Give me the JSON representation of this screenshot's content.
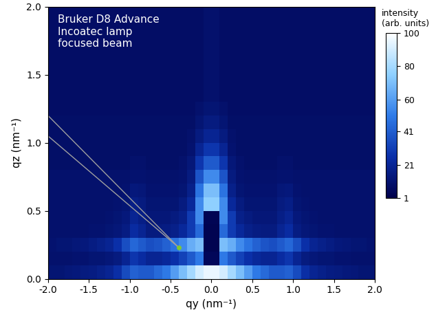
{
  "chart_data": {
    "type": "heatmap",
    "annotation": "Bruker D8 Advance\nIncoatec lamp\nfocused beam",
    "x_label": "qy (nm⁻¹)",
    "y_label": "qz (nm⁻¹)",
    "xlim": [
      -2.0,
      2.0
    ],
    "ylim": [
      0.0,
      2.0
    ],
    "xticks": [
      -2.0,
      -1.5,
      -1.0,
      -0.5,
      0.0,
      0.5,
      1.0,
      1.5,
      2.0
    ],
    "yticks": [
      0.0,
      0.5,
      1.0,
      1.5,
      2.0
    ],
    "colorbar_label": "intensity\n(arb. units)",
    "colorbar_range": [
      1,
      100
    ],
    "colorbar_ticks": [
      1,
      21,
      41,
      60,
      80,
      100
    ],
    "beam_point": [
      -0.4,
      0.23
    ],
    "beam_lines": [
      [
        [
          -2.0,
          1.2
        ],
        [
          -0.4,
          0.23
        ]
      ],
      [
        [
          -2.0,
          1.05
        ],
        [
          -0.4,
          0.23
        ]
      ]
    ],
    "cells": [
      [
        12,
        12,
        13,
        14,
        15,
        16,
        18,
        20,
        25,
        35,
        42,
        40,
        40,
        45,
        50,
        60,
        70,
        80,
        90,
        95,
        95,
        90,
        80,
        70,
        60,
        50,
        45,
        40,
        40,
        42,
        35,
        25,
        20,
        18,
        16,
        15,
        14,
        13,
        12,
        12
      ],
      [
        10,
        10,
        10,
        11,
        11,
        12,
        12,
        13,
        15,
        20,
        28,
        24,
        20,
        20,
        22,
        26,
        32,
        40,
        50,
        5,
        5,
        50,
        40,
        32,
        26,
        22,
        20,
        20,
        24,
        28,
        20,
        15,
        13,
        12,
        12,
        11,
        11,
        10,
        10,
        10
      ],
      [
        11,
        12,
        12,
        13,
        14,
        16,
        18,
        20,
        26,
        36,
        44,
        40,
        36,
        38,
        42,
        48,
        55,
        65,
        70,
        3,
        3,
        70,
        65,
        55,
        48,
        42,
        38,
        36,
        40,
        44,
        36,
        26,
        20,
        18,
        16,
        14,
        13,
        12,
        12,
        11
      ],
      [
        10,
        10,
        10,
        10,
        10,
        11,
        11,
        12,
        13,
        16,
        24,
        20,
        15,
        15,
        16,
        18,
        22,
        30,
        45,
        3,
        3,
        45,
        30,
        22,
        18,
        16,
        15,
        15,
        20,
        24,
        16,
        13,
        12,
        11,
        11,
        10,
        10,
        10,
        10,
        10
      ],
      [
        10,
        10,
        10,
        10,
        10,
        10,
        10,
        11,
        12,
        14,
        20,
        17,
        13,
        13,
        13,
        15,
        18,
        30,
        55,
        4,
        4,
        55,
        30,
        18,
        15,
        13,
        13,
        13,
        17,
        20,
        14,
        12,
        11,
        10,
        10,
        10,
        10,
        10,
        10,
        10
      ],
      [
        10,
        10,
        10,
        10,
        10,
        10,
        10,
        10,
        11,
        12,
        17,
        15,
        12,
        12,
        12,
        12,
        15,
        22,
        55,
        75,
        75,
        55,
        22,
        15,
        12,
        12,
        12,
        12,
        15,
        17,
        12,
        11,
        10,
        10,
        10,
        10,
        10,
        10,
        10,
        10
      ],
      [
        10,
        10,
        10,
        10,
        10,
        10,
        10,
        10,
        10,
        11,
        14,
        13,
        11,
        11,
        11,
        11,
        12,
        18,
        48,
        70,
        70,
        48,
        18,
        12,
        11,
        11,
        11,
        11,
        13,
        14,
        11,
        10,
        10,
        10,
        10,
        10,
        10,
        10,
        10,
        10
      ],
      [
        10,
        10,
        10,
        10,
        10,
        10,
        10,
        10,
        10,
        10,
        11,
        11,
        10,
        10,
        10,
        10,
        11,
        15,
        38,
        55,
        55,
        38,
        15,
        11,
        10,
        10,
        10,
        10,
        11,
        11,
        10,
        10,
        10,
        10,
        10,
        10,
        10,
        10,
        10,
        10
      ],
      [
        9,
        9,
        9,
        9,
        9,
        9,
        9,
        9,
        9,
        9,
        10,
        10,
        9,
        9,
        9,
        9,
        10,
        13,
        28,
        40,
        40,
        28,
        13,
        10,
        9,
        9,
        9,
        9,
        10,
        10,
        9,
        9,
        9,
        9,
        9,
        9,
        9,
        9,
        9,
        9
      ],
      [
        9,
        9,
        9,
        9,
        9,
        9,
        9,
        9,
        9,
        9,
        9,
        9,
        9,
        9,
        9,
        9,
        9,
        11,
        20,
        28,
        28,
        20,
        11,
        9,
        9,
        9,
        9,
        9,
        9,
        9,
        9,
        9,
        9,
        9,
        9,
        9,
        9,
        9,
        9,
        9
      ],
      [
        9,
        9,
        9,
        9,
        9,
        9,
        9,
        9,
        9,
        9,
        9,
        9,
        9,
        9,
        9,
        9,
        9,
        10,
        15,
        20,
        20,
        15,
        10,
        9,
        9,
        9,
        9,
        9,
        9,
        9,
        9,
        9,
        9,
        9,
        9,
        9,
        9,
        9,
        9,
        9
      ],
      [
        9,
        9,
        9,
        9,
        9,
        9,
        9,
        9,
        9,
        9,
        9,
        9,
        9,
        9,
        9,
        9,
        9,
        9,
        12,
        15,
        15,
        12,
        9,
        9,
        9,
        9,
        9,
        9,
        9,
        9,
        9,
        9,
        9,
        9,
        9,
        9,
        9,
        9,
        9,
        9
      ],
      [
        8,
        8,
        8,
        8,
        8,
        8,
        8,
        8,
        8,
        8,
        8,
        8,
        8,
        8,
        8,
        8,
        8,
        8,
        10,
        12,
        12,
        10,
        8,
        8,
        8,
        8,
        8,
        8,
        8,
        8,
        8,
        8,
        8,
        8,
        8,
        8,
        8,
        8,
        8,
        8
      ],
      [
        8,
        8,
        8,
        8,
        8,
        8,
        8,
        8,
        8,
        8,
        8,
        8,
        8,
        8,
        8,
        8,
        8,
        8,
        8,
        10,
        10,
        8,
        8,
        8,
        8,
        8,
        8,
        8,
        8,
        8,
        8,
        8,
        8,
        8,
        8,
        8,
        8,
        8,
        8,
        8
      ],
      [
        8,
        8,
        8,
        8,
        8,
        8,
        8,
        8,
        8,
        8,
        8,
        8,
        8,
        8,
        8,
        8,
        8,
        8,
        8,
        10,
        10,
        8,
        8,
        8,
        8,
        8,
        8,
        8,
        8,
        8,
        8,
        8,
        8,
        8,
        8,
        8,
        8,
        8,
        8,
        8
      ],
      [
        8,
        8,
        8,
        8,
        8,
        8,
        8,
        8,
        8,
        8,
        8,
        8,
        8,
        8,
        8,
        8,
        8,
        8,
        8,
        10,
        10,
        8,
        8,
        8,
        8,
        8,
        8,
        8,
        8,
        8,
        8,
        8,
        8,
        8,
        8,
        8,
        8,
        8,
        8,
        8
      ],
      [
        8,
        8,
        8,
        8,
        8,
        8,
        8,
        8,
        8,
        8,
        8,
        8,
        8,
        8,
        8,
        8,
        8,
        8,
        8,
        10,
        10,
        8,
        8,
        8,
        8,
        8,
        8,
        8,
        8,
        8,
        8,
        8,
        8,
        8,
        8,
        8,
        8,
        8,
        8,
        8
      ],
      [
        8,
        8,
        8,
        8,
        8,
        8,
        8,
        8,
        8,
        8,
        8,
        8,
        8,
        8,
        8,
        8,
        8,
        8,
        8,
        10,
        10,
        8,
        8,
        8,
        8,
        8,
        8,
        8,
        8,
        8,
        8,
        8,
        8,
        8,
        8,
        8,
        8,
        8,
        8,
        8
      ],
      [
        8,
        8,
        8,
        8,
        8,
        8,
        8,
        8,
        8,
        8,
        8,
        8,
        8,
        8,
        8,
        8,
        8,
        8,
        8,
        10,
        10,
        8,
        8,
        8,
        8,
        8,
        8,
        8,
        8,
        8,
        8,
        8,
        8,
        8,
        8,
        8,
        8,
        8,
        8,
        8
      ],
      [
        8,
        8,
        8,
        8,
        8,
        8,
        8,
        8,
        8,
        8,
        8,
        8,
        8,
        8,
        8,
        8,
        8,
        8,
        8,
        10,
        10,
        8,
        8,
        8,
        8,
        8,
        8,
        8,
        8,
        8,
        8,
        8,
        8,
        8,
        8,
        8,
        8,
        8,
        8,
        8
      ]
    ]
  }
}
